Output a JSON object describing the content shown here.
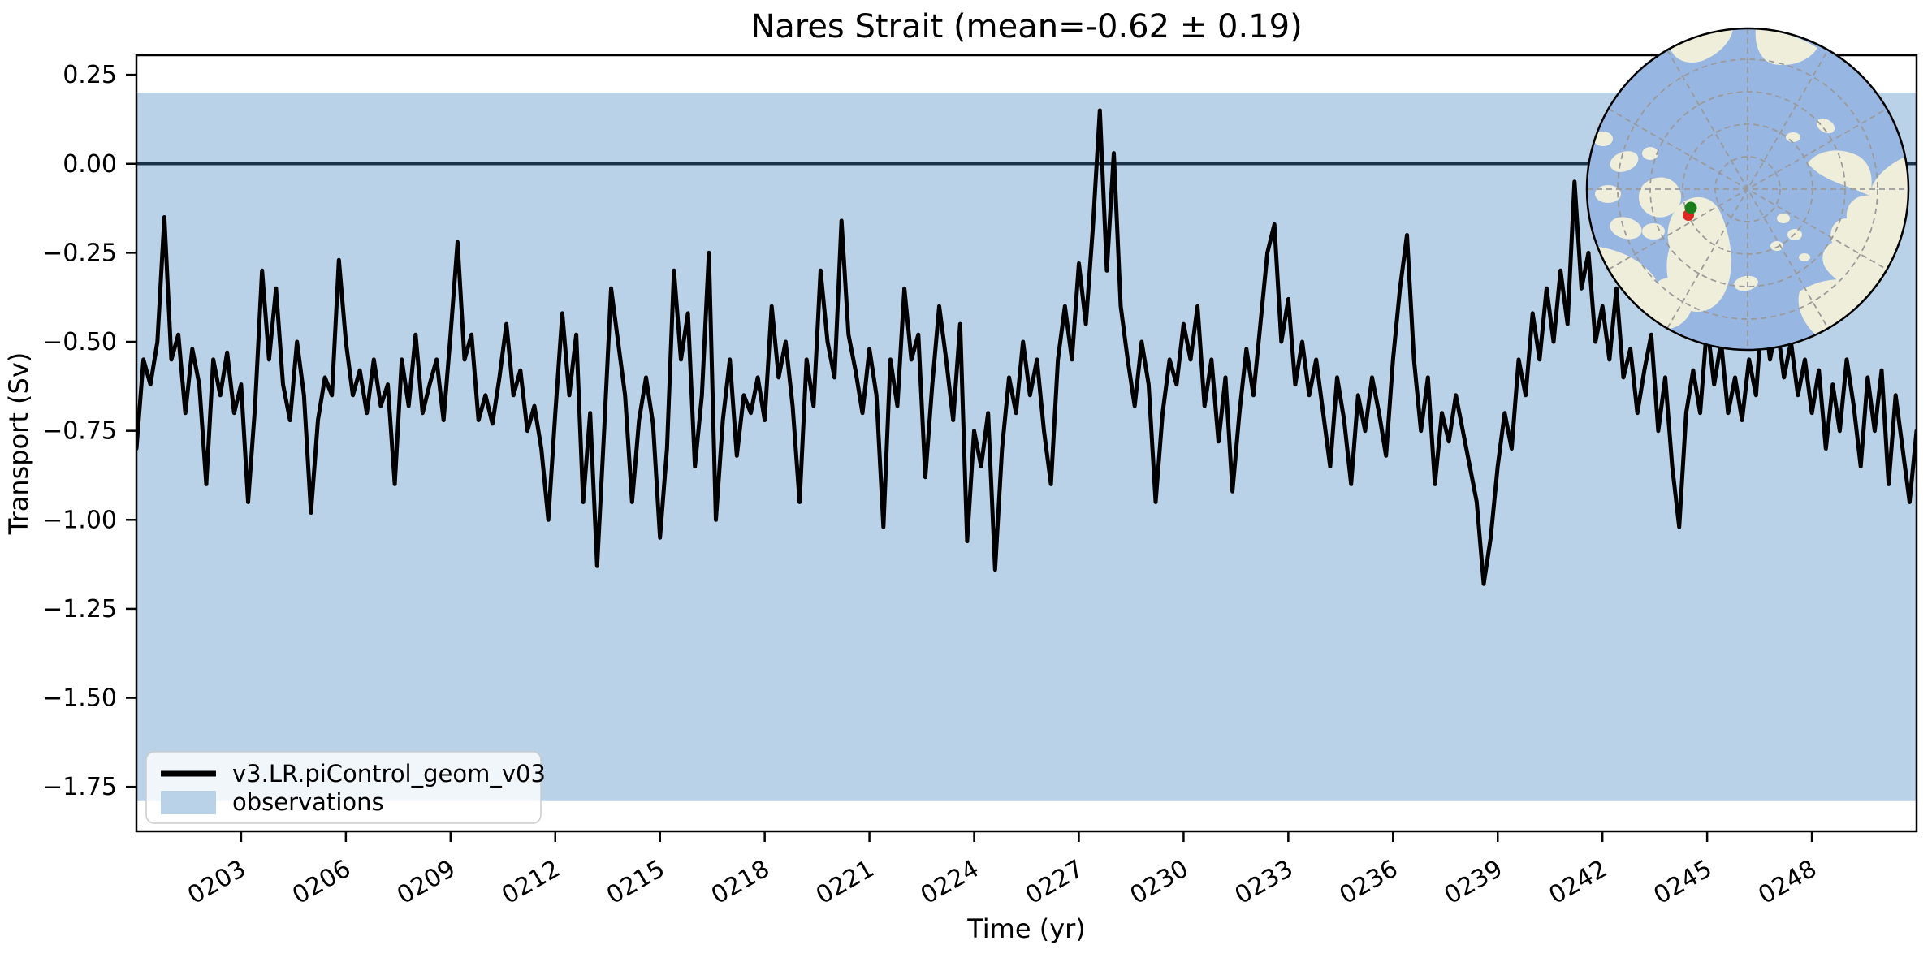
{
  "title": "Nares Strait (mean=-0.62 ± 0.19)",
  "stats": {
    "mean": -0.62,
    "uncertainty": 0.19
  },
  "chart_data": {
    "type": "line",
    "title": "Nares Strait (mean=-0.62 ± 0.19)",
    "xlabel": "Time (yr)",
    "ylabel": "Transport (Sv)",
    "xlim": [
      200,
      251
    ],
    "ylim": [
      -1.875,
      0.305
    ],
    "grid": false,
    "xticks": {
      "values": [
        203,
        206,
        209,
        212,
        215,
        218,
        221,
        224,
        227,
        230,
        233,
        236,
        239,
        242,
        245,
        248
      ],
      "labels": [
        "0203",
        "0206",
        "0209",
        "0212",
        "0215",
        "0218",
        "0221",
        "0224",
        "0227",
        "0230",
        "0233",
        "0236",
        "0239",
        "0242",
        "0245",
        "0248"
      ],
      "rotation": -30
    },
    "yticks": {
      "values": [
        0.25,
        0.0,
        -0.25,
        -0.5,
        -0.75,
        -1.0,
        -1.25,
        -1.5,
        -1.75
      ],
      "labels": [
        "0.25",
        "0.00",
        "−0.25",
        "−0.50",
        "−0.75",
        "−1.00",
        "−1.25",
        "−1.50",
        "−1.75"
      ]
    },
    "zero_line": {
      "y": 0,
      "color": "#1a3247",
      "width": 3.5
    },
    "observations_band": {
      "label": "observations",
      "ymin": -1.79,
      "ymax": 0.2,
      "color": "#b9d2e8"
    },
    "series": [
      {
        "name": "v3.LR.piControl_geom_v03",
        "color": "#000000",
        "linewidth": 5,
        "points": [
          [
            200.0,
            -0.8
          ],
          [
            200.2,
            -0.55
          ],
          [
            200.4,
            -0.62
          ],
          [
            200.6,
            -0.5
          ],
          [
            200.8,
            -0.15
          ],
          [
            201.0,
            -0.55
          ],
          [
            201.2,
            -0.48
          ],
          [
            201.4,
            -0.7
          ],
          [
            201.6,
            -0.52
          ],
          [
            201.8,
            -0.62
          ],
          [
            202.0,
            -0.9
          ],
          [
            202.2,
            -0.55
          ],
          [
            202.4,
            -0.65
          ],
          [
            202.6,
            -0.53
          ],
          [
            202.8,
            -0.7
          ],
          [
            203.0,
            -0.62
          ],
          [
            203.2,
            -0.95
          ],
          [
            203.4,
            -0.68
          ],
          [
            203.6,
            -0.3
          ],
          [
            203.8,
            -0.55
          ],
          [
            204.0,
            -0.35
          ],
          [
            204.2,
            -0.62
          ],
          [
            204.4,
            -0.72
          ],
          [
            204.6,
            -0.5
          ],
          [
            204.8,
            -0.65
          ],
          [
            205.0,
            -0.98
          ],
          [
            205.2,
            -0.72
          ],
          [
            205.4,
            -0.6
          ],
          [
            205.6,
            -0.65
          ],
          [
            205.8,
            -0.27
          ],
          [
            206.0,
            -0.5
          ],
          [
            206.2,
            -0.65
          ],
          [
            206.4,
            -0.58
          ],
          [
            206.6,
            -0.7
          ],
          [
            206.8,
            -0.55
          ],
          [
            207.0,
            -0.68
          ],
          [
            207.2,
            -0.62
          ],
          [
            207.4,
            -0.9
          ],
          [
            207.6,
            -0.55
          ],
          [
            207.8,
            -0.68
          ],
          [
            208.0,
            -0.48
          ],
          [
            208.2,
            -0.7
          ],
          [
            208.4,
            -0.62
          ],
          [
            208.6,
            -0.55
          ],
          [
            208.8,
            -0.72
          ],
          [
            209.0,
            -0.48
          ],
          [
            209.2,
            -0.22
          ],
          [
            209.4,
            -0.55
          ],
          [
            209.6,
            -0.48
          ],
          [
            209.8,
            -0.72
          ],
          [
            210.0,
            -0.65
          ],
          [
            210.2,
            -0.73
          ],
          [
            210.4,
            -0.6
          ],
          [
            210.6,
            -0.45
          ],
          [
            210.8,
            -0.65
          ],
          [
            211.0,
            -0.58
          ],
          [
            211.2,
            -0.75
          ],
          [
            211.4,
            -0.68
          ],
          [
            211.6,
            -0.8
          ],
          [
            211.8,
            -1.0
          ],
          [
            212.0,
            -0.7
          ],
          [
            212.2,
            -0.42
          ],
          [
            212.4,
            -0.65
          ],
          [
            212.6,
            -0.48
          ],
          [
            212.8,
            -0.95
          ],
          [
            213.0,
            -0.7
          ],
          [
            213.2,
            -1.13
          ],
          [
            213.4,
            -0.75
          ],
          [
            213.6,
            -0.35
          ],
          [
            213.8,
            -0.5
          ],
          [
            214.0,
            -0.65
          ],
          [
            214.2,
            -0.95
          ],
          [
            214.4,
            -0.72
          ],
          [
            214.6,
            -0.6
          ],
          [
            214.8,
            -0.73
          ],
          [
            215.0,
            -1.05
          ],
          [
            215.2,
            -0.8
          ],
          [
            215.4,
            -0.3
          ],
          [
            215.6,
            -0.55
          ],
          [
            215.8,
            -0.42
          ],
          [
            216.0,
            -0.85
          ],
          [
            216.2,
            -0.65
          ],
          [
            216.4,
            -0.25
          ],
          [
            216.6,
            -1.0
          ],
          [
            216.8,
            -0.72
          ],
          [
            217.0,
            -0.55
          ],
          [
            217.2,
            -0.82
          ],
          [
            217.4,
            -0.65
          ],
          [
            217.6,
            -0.7
          ],
          [
            217.8,
            -0.6
          ],
          [
            218.0,
            -0.72
          ],
          [
            218.2,
            -0.4
          ],
          [
            218.4,
            -0.6
          ],
          [
            218.6,
            -0.5
          ],
          [
            218.8,
            -0.68
          ],
          [
            219.0,
            -0.95
          ],
          [
            219.2,
            -0.55
          ],
          [
            219.4,
            -0.68
          ],
          [
            219.6,
            -0.3
          ],
          [
            219.8,
            -0.5
          ],
          [
            220.0,
            -0.6
          ],
          [
            220.2,
            -0.16
          ],
          [
            220.4,
            -0.48
          ],
          [
            220.6,
            -0.58
          ],
          [
            220.8,
            -0.7
          ],
          [
            221.0,
            -0.52
          ],
          [
            221.2,
            -0.65
          ],
          [
            221.4,
            -1.02
          ],
          [
            221.6,
            -0.55
          ],
          [
            221.8,
            -0.68
          ],
          [
            222.0,
            -0.35
          ],
          [
            222.2,
            -0.55
          ],
          [
            222.4,
            -0.48
          ],
          [
            222.6,
            -0.88
          ],
          [
            222.8,
            -0.62
          ],
          [
            223.0,
            -0.4
          ],
          [
            223.2,
            -0.55
          ],
          [
            223.4,
            -0.72
          ],
          [
            223.6,
            -0.45
          ],
          [
            223.8,
            -1.06
          ],
          [
            224.0,
            -0.75
          ],
          [
            224.2,
            -0.85
          ],
          [
            224.4,
            -0.7
          ],
          [
            224.6,
            -1.14
          ],
          [
            224.8,
            -0.8
          ],
          [
            225.0,
            -0.6
          ],
          [
            225.2,
            -0.7
          ],
          [
            225.4,
            -0.5
          ],
          [
            225.6,
            -0.65
          ],
          [
            225.8,
            -0.55
          ],
          [
            226.0,
            -0.75
          ],
          [
            226.2,
            -0.9
          ],
          [
            226.4,
            -0.55
          ],
          [
            226.6,
            -0.4
          ],
          [
            226.8,
            -0.55
          ],
          [
            227.0,
            -0.28
          ],
          [
            227.2,
            -0.45
          ],
          [
            227.4,
            -0.18
          ],
          [
            227.6,
            0.15
          ],
          [
            227.8,
            -0.3
          ],
          [
            228.0,
            0.03
          ],
          [
            228.2,
            -0.4
          ],
          [
            228.4,
            -0.55
          ],
          [
            228.6,
            -0.68
          ],
          [
            228.8,
            -0.5
          ],
          [
            229.0,
            -0.62
          ],
          [
            229.2,
            -0.95
          ],
          [
            229.4,
            -0.7
          ],
          [
            229.6,
            -0.55
          ],
          [
            229.8,
            -0.62
          ],
          [
            230.0,
            -0.45
          ],
          [
            230.2,
            -0.55
          ],
          [
            230.4,
            -0.4
          ],
          [
            230.6,
            -0.68
          ],
          [
            230.8,
            -0.55
          ],
          [
            231.0,
            -0.78
          ],
          [
            231.2,
            -0.6
          ],
          [
            231.4,
            -0.92
          ],
          [
            231.6,
            -0.7
          ],
          [
            231.8,
            -0.52
          ],
          [
            232.0,
            -0.65
          ],
          [
            232.2,
            -0.45
          ],
          [
            232.4,
            -0.25
          ],
          [
            232.6,
            -0.17
          ],
          [
            232.8,
            -0.5
          ],
          [
            233.0,
            -0.38
          ],
          [
            233.2,
            -0.62
          ],
          [
            233.4,
            -0.5
          ],
          [
            233.6,
            -0.65
          ],
          [
            233.8,
            -0.55
          ],
          [
            234.0,
            -0.7
          ],
          [
            234.2,
            -0.85
          ],
          [
            234.4,
            -0.6
          ],
          [
            234.6,
            -0.72
          ],
          [
            234.8,
            -0.9
          ],
          [
            235.0,
            -0.65
          ],
          [
            235.2,
            -0.75
          ],
          [
            235.4,
            -0.6
          ],
          [
            235.6,
            -0.7
          ],
          [
            235.8,
            -0.82
          ],
          [
            236.0,
            -0.55
          ],
          [
            236.2,
            -0.35
          ],
          [
            236.4,
            -0.2
          ],
          [
            236.6,
            -0.55
          ],
          [
            236.8,
            -0.75
          ],
          [
            237.0,
            -0.6
          ],
          [
            237.2,
            -0.9
          ],
          [
            237.4,
            -0.7
          ],
          [
            237.6,
            -0.78
          ],
          [
            237.8,
            -0.65
          ],
          [
            238.0,
            -0.75
          ],
          [
            238.2,
            -0.85
          ],
          [
            238.4,
            -0.95
          ],
          [
            238.6,
            -1.18
          ],
          [
            238.8,
            -1.05
          ],
          [
            239.0,
            -0.85
          ],
          [
            239.2,
            -0.7
          ],
          [
            239.4,
            -0.8
          ],
          [
            239.6,
            -0.55
          ],
          [
            239.8,
            -0.65
          ],
          [
            240.0,
            -0.42
          ],
          [
            240.2,
            -0.55
          ],
          [
            240.4,
            -0.35
          ],
          [
            240.6,
            -0.5
          ],
          [
            240.8,
            -0.3
          ],
          [
            241.0,
            -0.45
          ],
          [
            241.2,
            -0.05
          ],
          [
            241.4,
            -0.35
          ],
          [
            241.6,
            -0.25
          ],
          [
            241.8,
            -0.5
          ],
          [
            242.0,
            -0.4
          ],
          [
            242.2,
            -0.55
          ],
          [
            242.4,
            -0.35
          ],
          [
            242.6,
            -0.6
          ],
          [
            242.8,
            -0.52
          ],
          [
            243.0,
            -0.7
          ],
          [
            243.2,
            -0.58
          ],
          [
            243.4,
            -0.48
          ],
          [
            243.6,
            -0.75
          ],
          [
            243.8,
            -0.6
          ],
          [
            244.0,
            -0.85
          ],
          [
            244.2,
            -1.02
          ],
          [
            244.4,
            -0.7
          ],
          [
            244.6,
            -0.58
          ],
          [
            244.8,
            -0.7
          ],
          [
            245.0,
            -0.45
          ],
          [
            245.2,
            -0.62
          ],
          [
            245.4,
            -0.5
          ],
          [
            245.6,
            -0.7
          ],
          [
            245.8,
            -0.6
          ],
          [
            246.0,
            -0.72
          ],
          [
            246.2,
            -0.55
          ],
          [
            246.4,
            -0.65
          ],
          [
            246.6,
            -0.38
          ],
          [
            246.8,
            -0.55
          ],
          [
            247.0,
            -0.45
          ],
          [
            247.2,
            -0.6
          ],
          [
            247.4,
            -0.5
          ],
          [
            247.6,
            -0.65
          ],
          [
            247.8,
            -0.55
          ],
          [
            248.0,
            -0.7
          ],
          [
            248.2,
            -0.58
          ],
          [
            248.4,
            -0.8
          ],
          [
            248.6,
            -0.62
          ],
          [
            248.8,
            -0.75
          ],
          [
            249.0,
            -0.55
          ],
          [
            249.2,
            -0.68
          ],
          [
            249.4,
            -0.85
          ],
          [
            249.6,
            -0.6
          ],
          [
            249.8,
            -0.75
          ],
          [
            250.0,
            -0.58
          ],
          [
            250.2,
            -0.9
          ],
          [
            250.4,
            -0.65
          ],
          [
            250.6,
            -0.8
          ],
          [
            250.8,
            -0.95
          ],
          [
            251.0,
            -0.75
          ]
        ]
      }
    ]
  },
  "legend": {
    "background": "rgba(255,255,255,0.8)",
    "border": "#cccccc",
    "entries": [
      {
        "swatch": "line",
        "color": "#000000",
        "label": "v3.LR.piControl_geom_v03"
      },
      {
        "swatch": "patch",
        "color": "#b9d2e8",
        "label": "observations"
      }
    ]
  },
  "inset_map": {
    "projection": "north-polar-stereographic",
    "ocean_color": "#98b6e2",
    "land_color": "#efeeda",
    "grid_color": "#9a9a9a",
    "border_color": "#000000",
    "markers": [
      {
        "name": "strait-marker-red",
        "color": "#e02622",
        "x": -73,
        "y": 32,
        "r": 7
      },
      {
        "name": "strait-marker-green",
        "color": "#1b7d1b",
        "x": -70,
        "y": 23,
        "r": 7.5
      }
    ]
  }
}
